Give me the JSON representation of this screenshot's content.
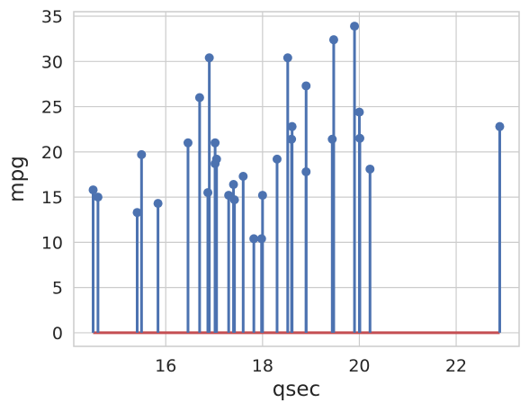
{
  "chart_data": {
    "type": "stem",
    "xlabel": "qsec",
    "ylabel": "mpg",
    "xlim": [
      14.1,
      23.3
    ],
    "ylim": [
      -1.5,
      35.5
    ],
    "xticks": [
      16,
      18,
      20,
      22
    ],
    "yticks": [
      0,
      5,
      10,
      15,
      20,
      25,
      30,
      35
    ],
    "grid": true,
    "baseline": 0,
    "colors": {
      "stem": "#4c72b0",
      "baseline": "#c44e52",
      "grid": "#cccccc",
      "frame": "#cccccc"
    },
    "points": [
      {
        "x": 16.46,
        "y": 21.0
      },
      {
        "x": 17.02,
        "y": 21.0
      },
      {
        "x": 18.61,
        "y": 22.8
      },
      {
        "x": 19.44,
        "y": 21.4
      },
      {
        "x": 17.02,
        "y": 18.7
      },
      {
        "x": 20.22,
        "y": 18.1
      },
      {
        "x": 15.84,
        "y": 14.3
      },
      {
        "x": 20.0,
        "y": 24.4
      },
      {
        "x": 22.9,
        "y": 22.8
      },
      {
        "x": 18.3,
        "y": 19.2
      },
      {
        "x": 18.9,
        "y": 17.8
      },
      {
        "x": 17.4,
        "y": 16.4
      },
      {
        "x": 17.6,
        "y": 17.3
      },
      {
        "x": 18.0,
        "y": 15.2
      },
      {
        "x": 17.98,
        "y": 10.4
      },
      {
        "x": 17.82,
        "y": 10.4
      },
      {
        "x": 17.42,
        "y": 14.7
      },
      {
        "x": 19.47,
        "y": 32.4
      },
      {
        "x": 18.52,
        "y": 30.4
      },
      {
        "x": 19.9,
        "y": 33.9
      },
      {
        "x": 20.01,
        "y": 21.5
      },
      {
        "x": 16.87,
        "y": 15.5
      },
      {
        "x": 17.3,
        "y": 15.2
      },
      {
        "x": 15.41,
        "y": 13.3
      },
      {
        "x": 17.05,
        "y": 19.2
      },
      {
        "x": 18.9,
        "y": 27.3
      },
      {
        "x": 16.7,
        "y": 26.0
      },
      {
        "x": 16.9,
        "y": 30.4
      },
      {
        "x": 14.5,
        "y": 15.8
      },
      {
        "x": 15.5,
        "y": 19.7
      },
      {
        "x": 14.6,
        "y": 15.0
      },
      {
        "x": 18.6,
        "y": 21.4
      }
    ]
  }
}
